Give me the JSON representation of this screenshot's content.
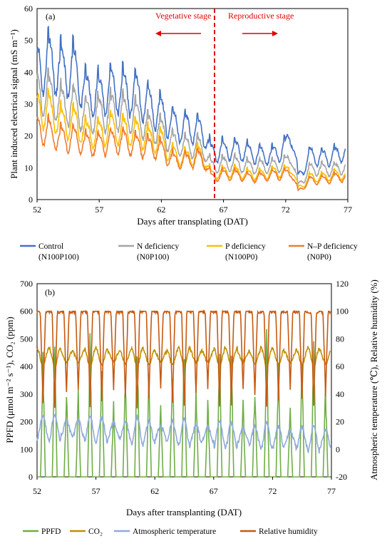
{
  "panel_a": {
    "label": "(a)",
    "ylabel": "Plant induced electrical signal (mS m⁻¹)",
    "xlabel": "Days after transplating (DAT)",
    "annotations": {
      "vegetative": "Vegetative stage",
      "reproductive": "Reproductive stage"
    },
    "legend": [
      {
        "line1": "Control",
        "line2": "(N100P100)",
        "color": "#4472C4"
      },
      {
        "line1": "N deficiency",
        "line2": "(N0P100)",
        "color": "#A5A5A5"
      },
      {
        "line1": "P deficiency",
        "line2": "(N100P0)",
        "color": "#FFC000"
      },
      {
        "line1": "N–P deficiency",
        "line2": "(N0P0)",
        "color": "#ED7D31"
      }
    ],
    "x_ticks": [
      "52",
      "57",
      "62",
      "67",
      "72",
      "77"
    ],
    "y_ticks": [
      "0",
      "10",
      "20",
      "30",
      "40",
      "50",
      "60"
    ]
  },
  "panel_b": {
    "label": "(b)",
    "ylabel_left": "PPFD (μmol m⁻² s⁻¹), CO₂ (ppm)",
    "ylabel_right": "Atmospheric temperature (℃), Relative humidity (%)",
    "xlabel": "Days after transplanting (DAT)",
    "legend": [
      {
        "label": "PPFD",
        "color": "#70AD47"
      },
      {
        "label": "CO₂",
        "color": "#BF9000"
      },
      {
        "label": "Atmospheric temperature",
        "color": "#8FAADC"
      },
      {
        "label": "Relative humidity",
        "color": "#C55A11"
      }
    ],
    "x_ticks": [
      "52",
      "57",
      "62",
      "67",
      "72",
      "77"
    ],
    "y_ticks_left": [
      "0",
      "100",
      "200",
      "300",
      "400",
      "500",
      "600",
      "700"
    ],
    "y_ticks_right": [
      "-20",
      "0",
      "20",
      "40",
      "60",
      "80",
      "100",
      "120"
    ]
  },
  "chart_data": [
    {
      "type": "line",
      "xlim": [
        52,
        77
      ],
      "ylim": [
        0,
        60
      ],
      "stage_boundary_x": 65.5,
      "series": [
        {
          "name": "Control (N100P100)",
          "color": "#4472C4",
          "x": [
            52,
            53,
            54,
            55,
            56,
            57,
            58,
            59,
            60,
            61,
            62,
            63,
            64,
            65,
            65.5,
            66,
            67,
            68,
            69,
            70,
            71,
            72,
            72.5,
            73,
            74,
            75,
            76,
            77
          ],
          "y": [
            48,
            50,
            46,
            47,
            38,
            38,
            40,
            39,
            38,
            34,
            31,
            27,
            26,
            25,
            24,
            17,
            18,
            18,
            17,
            16,
            16,
            19,
            25,
            8,
            16,
            15,
            16,
            18
          ]
        },
        {
          "name": "N deficiency (N0P100)",
          "color": "#A5A5A5",
          "x": [
            52,
            53,
            54,
            55,
            56,
            57,
            58,
            59,
            60,
            61,
            62,
            63,
            64,
            65,
            65.5,
            66,
            67,
            68,
            69,
            70,
            71,
            72,
            72.5,
            73,
            74,
            75,
            76,
            77
          ],
          "y": [
            39,
            38,
            34,
            34,
            30,
            31,
            32,
            31,
            30,
            26,
            25,
            20,
            19,
            19,
            18,
            12,
            13,
            13,
            12,
            12,
            12,
            13,
            16,
            5,
            11,
            11,
            11,
            12
          ]
        },
        {
          "name": "P deficiency (N100P0)",
          "color": "#FFC000",
          "x": [
            52,
            53,
            54,
            55,
            56,
            57,
            58,
            59,
            60,
            61,
            62,
            63,
            64,
            65,
            65.5,
            66,
            67,
            68,
            69,
            70,
            71,
            72,
            72.5,
            73,
            74,
            75,
            76,
            77
          ],
          "y": [
            33,
            32,
            28,
            28,
            24,
            24,
            26,
            25,
            24,
            22,
            21,
            16,
            15,
            16,
            15,
            9,
            10,
            10,
            9,
            9,
            10,
            10,
            12,
            4,
            8,
            8,
            9,
            9
          ]
        },
        {
          "name": "N–P deficiency (N0P0)",
          "color": "#ED7D31",
          "x": [
            52,
            53,
            54,
            55,
            56,
            57,
            58,
            59,
            60,
            61,
            62,
            63,
            64,
            65,
            65.5,
            66,
            67,
            68,
            69,
            70,
            71,
            72,
            72.5,
            73,
            74,
            75,
            76,
            77
          ],
          "y": [
            26,
            24,
            22,
            22,
            20,
            20,
            21,
            21,
            20,
            19,
            18,
            14,
            14,
            15,
            14,
            8,
            9,
            9,
            8,
            8,
            9,
            9,
            10,
            3,
            7,
            7,
            8,
            8
          ]
        }
      ]
    },
    {
      "type": "line",
      "xlim": [
        52,
        77
      ],
      "ylim_left": [
        0,
        700
      ],
      "ylim_right": [
        -20,
        120
      ],
      "series": [
        {
          "name": "PPFD",
          "color": "#70AD47",
          "axis": "left",
          "pattern": "daily_peak",
          "baseline": 0,
          "peak": 480
        },
        {
          "name": "CO₂",
          "color": "#BF9000",
          "axis": "left",
          "pattern": "daily_cycle",
          "low": 400,
          "high": 470
        },
        {
          "name": "Atmospheric temperature",
          "color": "#8FAADC",
          "axis": "right",
          "pattern": "daily_cycle",
          "low": 2,
          "high": 22
        },
        {
          "name": "Relative humidity",
          "color": "#C55A11",
          "axis": "right",
          "pattern": "daily_trough",
          "low": 30,
          "high": 100
        }
      ]
    }
  ]
}
